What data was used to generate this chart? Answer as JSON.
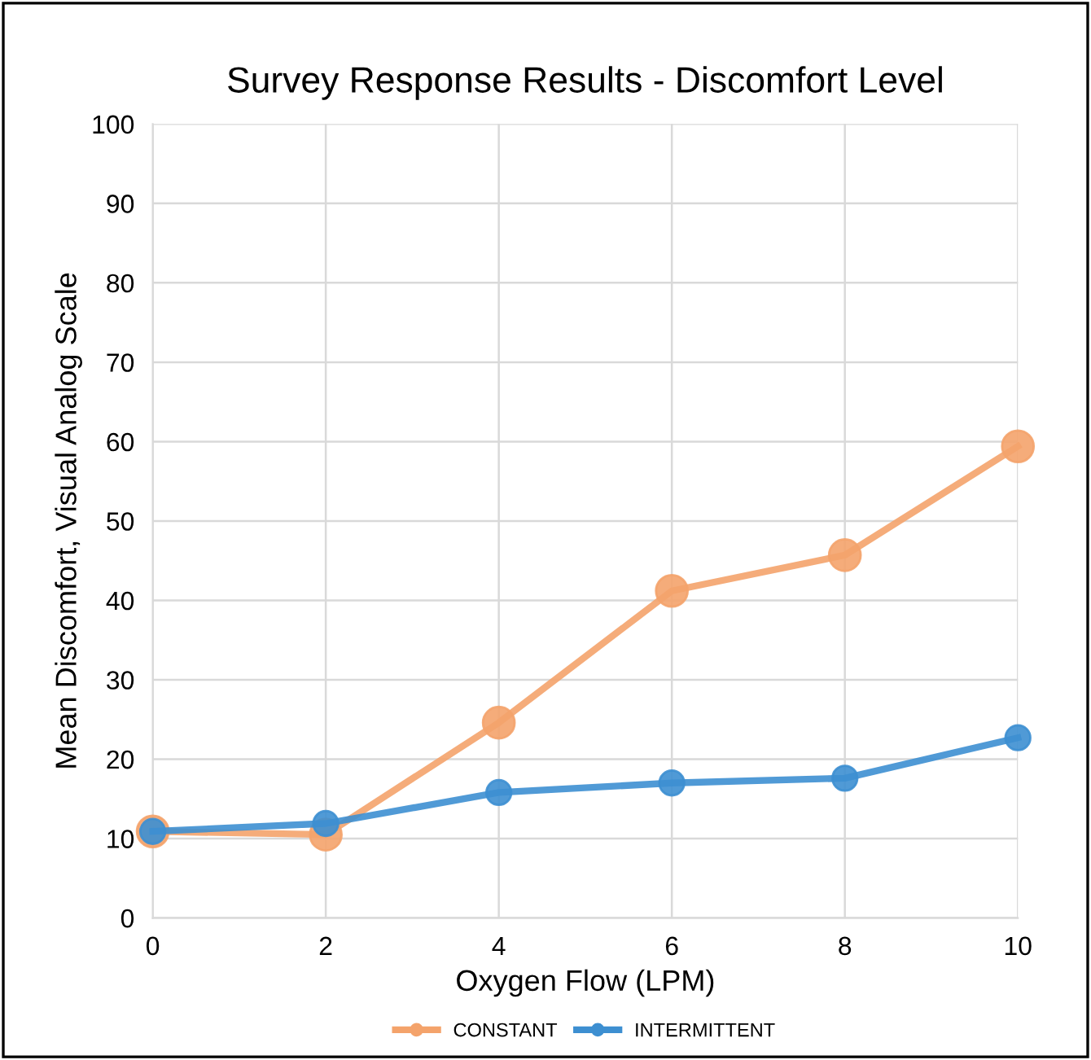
{
  "chart_data": {
    "type": "line",
    "title": "Survey Response Results - Discomfort Level",
    "xlabel": "Oxygen Flow (LPM)",
    "ylabel": "Mean Discomfort, Visual Analog Scale",
    "x": [
      0,
      2,
      4,
      6,
      8,
      10
    ],
    "series": [
      {
        "name": "CONSTANT",
        "color": "#f4a36b",
        "values": [
          10.9,
          10.5,
          24.6,
          41.2,
          45.7,
          59.4
        ]
      },
      {
        "name": "INTERMITTENT",
        "color": "#3d8fd1",
        "values": [
          10.9,
          11.9,
          15.8,
          17.0,
          17.6,
          22.7
        ]
      }
    ],
    "xlim": [
      0,
      10
    ],
    "xticks": [
      0,
      2,
      4,
      6,
      8,
      10
    ],
    "ylim": [
      0,
      100
    ],
    "yticks": [
      0,
      10,
      20,
      30,
      40,
      50,
      60,
      70,
      80,
      90,
      100
    ],
    "grid": true,
    "legend": "bottom",
    "marker": "circle",
    "line_style": "solid"
  }
}
